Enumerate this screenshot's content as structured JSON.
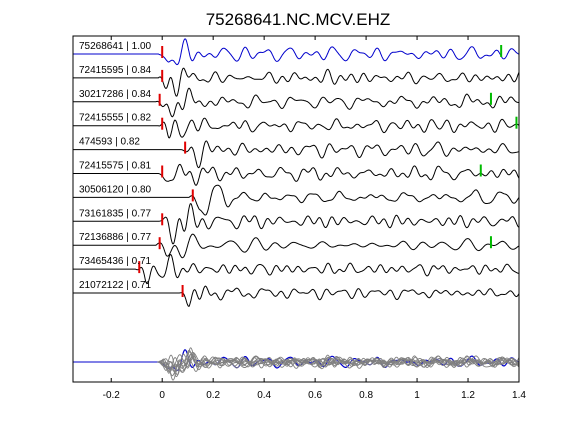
{
  "chart_data": {
    "type": "line",
    "title": "75268641.NC.MCV.EHZ",
    "xlabel": "",
    "ylabel": "",
    "xlim": [
      -0.35,
      1.4
    ],
    "x_ticks": [
      "-0.2",
      "0",
      "0.2",
      "0.4",
      "0.6",
      "0.8",
      "1",
      "1.2",
      "1.4"
    ],
    "x_tick_values": [
      -0.2,
      0,
      0.2,
      0.4,
      0.6,
      0.8,
      1.0,
      1.2,
      1.4
    ],
    "grid": false,
    "colors": {
      "reference": "#0000cc",
      "trace": "#000000",
      "stack": "#808080",
      "pick_p": "#e00000",
      "pick_s": "#00bb00"
    },
    "series": [
      {
        "name": "75268641 | 1.00",
        "p_pick": 0.0,
        "s_pick": 1.33,
        "reference": true
      },
      {
        "name": "72415595 | 0.84",
        "p_pick": 0.0,
        "s_pick": null
      },
      {
        "name": "30217286 | 0.84",
        "p_pick": -0.01,
        "s_pick": 1.29
      },
      {
        "name": "72415555 | 0.82",
        "p_pick": 0.0,
        "s_pick": 1.39
      },
      {
        "name": "474593 | 0.82",
        "p_pick": 0.09,
        "s_pick": null
      },
      {
        "name": "72415575 | 0.81",
        "p_pick": 0.0,
        "s_pick": 1.25
      },
      {
        "name": "30506120 | 0.80",
        "p_pick": 0.12,
        "s_pick": null
      },
      {
        "name": "73161835 | 0.77",
        "p_pick": 0.0,
        "s_pick": null
      },
      {
        "name": "72136886 | 0.77",
        "p_pick": -0.01,
        "s_pick": 1.29
      },
      {
        "name": "73465436 | 0.71",
        "p_pick": -0.09,
        "s_pick": null
      },
      {
        "name": "21072122 | 0.71",
        "p_pick": 0.08,
        "s_pick": null
      }
    ]
  }
}
